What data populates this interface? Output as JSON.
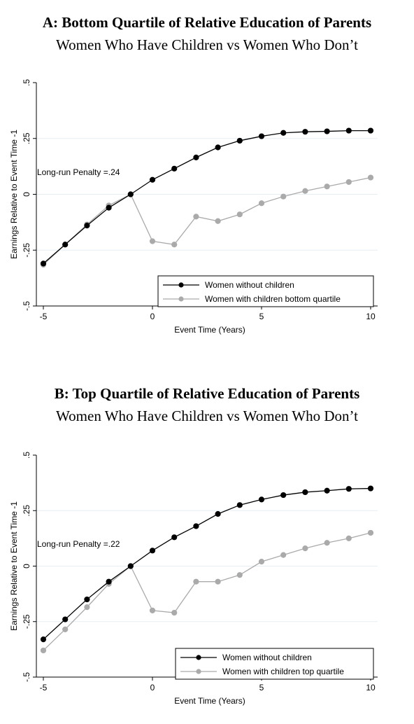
{
  "chart_data": [
    {
      "type": "line",
      "title": "A: Bottom Quartile of Relative Education of Parents",
      "subtitle": "Women Who Have Children vs Women Who Don’t",
      "xlabel": "Event Time (Years)",
      "ylabel": "Earnings Relative to Event Time -1",
      "x_ticks": [
        "-5",
        "0",
        "5",
        "10"
      ],
      "y_ticks": [
        ".5",
        ".25",
        "0",
        "-.25",
        "-.5"
      ],
      "xlim": [
        -5,
        10
      ],
      "ylim": [
        -0.5,
        0.5
      ],
      "grid": "horizontal",
      "legend_position": "bottom-right",
      "annotation": "Long-run Penalty =.24",
      "x": [
        -5,
        -4,
        -3,
        -2,
        -1,
        0,
        1,
        2,
        3,
        4,
        5,
        6,
        7,
        8,
        9,
        10
      ],
      "series": [
        {
          "name": "Women without children",
          "color": "#000000",
          "values": [
            -0.31,
            -0.225,
            -0.14,
            -0.06,
            0.0,
            0.065,
            0.115,
            0.165,
            0.21,
            0.24,
            0.26,
            0.275,
            0.28,
            0.282,
            0.285,
            0.285
          ]
        },
        {
          "name": "Women with children bottom quartile",
          "color": "#aaaaaa",
          "values": [
            -0.315,
            -0.225,
            -0.135,
            -0.05,
            0.0,
            -0.21,
            -0.225,
            -0.1,
            -0.12,
            -0.09,
            -0.04,
            -0.01,
            0.015,
            0.035,
            0.055,
            0.075
          ]
        }
      ]
    },
    {
      "type": "line",
      "title": "B: Top Quartile of Relative Education of Parents",
      "subtitle": "Women Who Have Children vs Women Who Don’t",
      "xlabel": "Event Time (Years)",
      "ylabel": "Earnings Relative to Event Time -1",
      "x_ticks": [
        "-5",
        "0",
        "5",
        "10"
      ],
      "y_ticks": [
        ".5",
        ".25",
        "0",
        "-.25",
        "-.5"
      ],
      "xlim": [
        -5,
        10
      ],
      "ylim": [
        -0.5,
        0.5
      ],
      "grid": "horizontal",
      "legend_position": "bottom-right",
      "annotation": "Long-run Penalty =.22",
      "x": [
        -5,
        -4,
        -3,
        -2,
        -1,
        0,
        1,
        2,
        3,
        4,
        5,
        6,
        7,
        8,
        9,
        10
      ],
      "series": [
        {
          "name": "Women without children",
          "color": "#000000",
          "values": [
            -0.33,
            -0.24,
            -0.15,
            -0.07,
            0.0,
            0.07,
            0.13,
            0.18,
            0.235,
            0.275,
            0.3,
            0.32,
            0.333,
            0.34,
            0.348,
            0.35
          ]
        },
        {
          "name": "Women with children top quartile",
          "color": "#aaaaaa",
          "values": [
            -0.38,
            -0.285,
            -0.185,
            -0.08,
            0.0,
            -0.2,
            -0.21,
            -0.07,
            -0.07,
            -0.04,
            0.02,
            0.05,
            0.08,
            0.105,
            0.125,
            0.15
          ]
        }
      ]
    }
  ]
}
